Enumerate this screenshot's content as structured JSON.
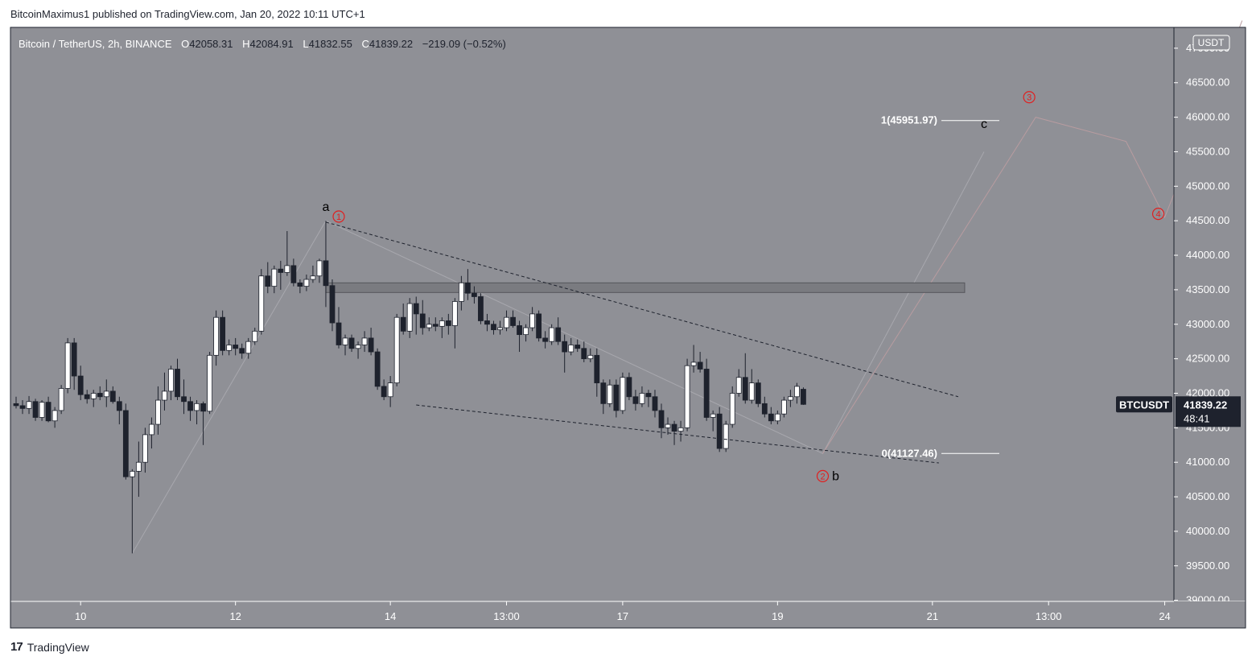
{
  "header": {
    "published_text": "BitcoinMaximus1 published on TradingView.com, Jan 20, 2022 10:11 UTC+1"
  },
  "footer": {
    "logo_glyph": "17",
    "brand": "TradingView"
  },
  "symbol_bar": {
    "name": "Bitcoin / TetherUS, 2h, BINANCE",
    "o_label": "O",
    "o": "42058.31",
    "h_label": "H",
    "h": "42084.91",
    "l_label": "L",
    "l": "41832.55",
    "c_label": "C",
    "c": "41839.22",
    "change": "−219.09 (−0.52%)"
  },
  "currency_badge": "USDT",
  "price_tag": {
    "symbol": "BTCUSDT",
    "price": "41839.22",
    "countdown": "48:41"
  },
  "colors": {
    "background": "#8f9096",
    "up": "#ffffff",
    "down": "#1e222d",
    "wave": "#e02020"
  },
  "chart_data": {
    "type": "candlestick",
    "ylim": [
      39000,
      47000
    ],
    "y_ticks": [
      {
        "label": "46500.00",
        "v": 46500
      },
      {
        "label": "46000.00",
        "v": 46000
      },
      {
        "label": "45500.00",
        "v": 45500
      },
      {
        "label": "45000.00",
        "v": 45000
      },
      {
        "label": "44500.00",
        "v": 44500
      },
      {
        "label": "44000.00",
        "v": 44000
      },
      {
        "label": "43500.00",
        "v": 43500
      },
      {
        "label": "43000.00",
        "v": 43000
      },
      {
        "label": "42500.00",
        "v": 42500
      },
      {
        "label": "42000.00",
        "v": 42000
      },
      {
        "label": "41500.00",
        "v": 41500
      },
      {
        "label": "41000.00",
        "v": 41000
      },
      {
        "label": "40500.00",
        "v": 40500
      },
      {
        "label": "40000.00",
        "v": 40000
      },
      {
        "label": "39500.00",
        "v": 39500
      },
      {
        "label": "39000.00",
        "v": 39000
      }
    ],
    "top_tick_label": "47000.00",
    "x_ticks": [
      {
        "label": "10",
        "i": 10
      },
      {
        "label": "12",
        "i": 34
      },
      {
        "label": "14",
        "i": 58
      },
      {
        "label": "13:00",
        "i": 76
      },
      {
        "label": "17",
        "i": 94
      },
      {
        "label": "19",
        "i": 118
      },
      {
        "label": "21",
        "i": 142
      },
      {
        "label": "13:00",
        "i": 160
      },
      {
        "label": "24",
        "i": 178
      }
    ],
    "candles": [
      [
        41850,
        41950,
        41780,
        41820
      ],
      [
        41820,
        41900,
        41700,
        41780
      ],
      [
        41780,
        41960,
        41700,
        41880
      ],
      [
        41880,
        41920,
        41600,
        41650
      ],
      [
        41650,
        41900,
        41600,
        41870
      ],
      [
        41870,
        41950,
        41580,
        41600
      ],
      [
        41600,
        41800,
        41500,
        41750
      ],
      [
        41750,
        42120,
        41700,
        42070
      ],
      [
        42070,
        42800,
        42000,
        42730
      ],
      [
        42730,
        42800,
        42050,
        42250
      ],
      [
        42250,
        42400,
        41900,
        41980
      ],
      [
        41980,
        42050,
        41850,
        41920
      ],
      [
        41920,
        42050,
        41800,
        42000
      ],
      [
        42000,
        42100,
        41900,
        41950
      ],
      [
        41950,
        42200,
        41800,
        42030
      ],
      [
        42030,
        42100,
        41850,
        41880
      ],
      [
        41880,
        41950,
        41550,
        41750
      ],
      [
        41750,
        41850,
        40750,
        40790
      ],
      [
        40790,
        40900,
        39680,
        40870
      ],
      [
        40870,
        41300,
        40500,
        41000
      ],
      [
        41000,
        41500,
        40850,
        41400
      ],
      [
        41400,
        41650,
        41200,
        41550
      ],
      [
        41550,
        42100,
        41400,
        41900
      ],
      [
        41900,
        42300,
        41750,
        42030
      ],
      [
        42030,
        42400,
        41900,
        42350
      ],
      [
        42350,
        42500,
        41900,
        41950
      ],
      [
        41950,
        42200,
        41700,
        41880
      ],
      [
        41880,
        41950,
        41600,
        41750
      ],
      [
        41750,
        41900,
        41550,
        41850
      ],
      [
        41850,
        41880,
        41250,
        41740
      ],
      [
        41740,
        42600,
        41700,
        42550
      ],
      [
        42550,
        43200,
        42400,
        43100
      ],
      [
        43100,
        43200,
        42550,
        42620
      ],
      [
        42620,
        42780,
        42550,
        42700
      ],
      [
        42700,
        42800,
        42550,
        42650
      ],
      [
        42650,
        42720,
        42500,
        42580
      ],
      [
        42580,
        42800,
        42500,
        42750
      ],
      [
        42750,
        42950,
        42700,
        42900
      ],
      [
        42900,
        43800,
        42850,
        43700
      ],
      [
        43700,
        43900,
        43450,
        43550
      ],
      [
        43550,
        43850,
        43450,
        43800
      ],
      [
        43800,
        43920,
        43500,
        43750
      ],
      [
        43750,
        44350,
        43700,
        43850
      ],
      [
        43850,
        43950,
        43550,
        43600
      ],
      [
        43600,
        43650,
        43450,
        43550
      ],
      [
        43550,
        43720,
        43480,
        43650
      ],
      [
        43650,
        43850,
        43600,
        43700
      ],
      [
        43700,
        43950,
        43600,
        43920
      ],
      [
        43920,
        44500,
        43250,
        43560
      ],
      [
        43560,
        43650,
        42900,
        43020
      ],
      [
        43020,
        43250,
        42650,
        42700
      ],
      [
        42700,
        42850,
        42550,
        42800
      ],
      [
        42800,
        42850,
        42600,
        42650
      ],
      [
        42650,
        42750,
        42500,
        42700
      ],
      [
        42700,
        42900,
        42600,
        42800
      ],
      [
        42800,
        42950,
        42550,
        42600
      ],
      [
        42600,
        42650,
        42050,
        42100
      ],
      [
        42100,
        42200,
        41900,
        41950
      ],
      [
        41950,
        42250,
        41800,
        42150
      ],
      [
        42150,
        43150,
        42100,
        43100
      ],
      [
        43100,
        43300,
        42850,
        42900
      ],
      [
        42900,
        43380,
        42800,
        43300
      ],
      [
        43300,
        43400,
        42850,
        43150
      ],
      [
        43150,
        43350,
        42850,
        42950
      ],
      [
        42950,
        43100,
        42900,
        43000
      ],
      [
        43000,
        43100,
        42900,
        42970
      ],
      [
        42970,
        43100,
        42800,
        43050
      ],
      [
        43050,
        43150,
        42850,
        42980
      ],
      [
        42980,
        43380,
        42650,
        43330
      ],
      [
        43330,
        43700,
        43200,
        43600
      ],
      [
        43600,
        43800,
        43350,
        43450
      ],
      [
        43450,
        43550,
        43300,
        43400
      ],
      [
        43400,
        43450,
        43000,
        43050
      ],
      [
        43050,
        43150,
        42900,
        43000
      ],
      [
        43000,
        43050,
        42850,
        42920
      ],
      [
        42920,
        43050,
        42850,
        42950
      ],
      [
        42950,
        43200,
        42900,
        43100
      ],
      [
        43100,
        43200,
        42950,
        42980
      ],
      [
        42980,
        43050,
        42600,
        42850
      ],
      [
        42850,
        43000,
        42750,
        42950
      ],
      [
        42950,
        43250,
        42900,
        43150
      ],
      [
        43150,
        43200,
        42750,
        42800
      ],
      [
        42800,
        42900,
        42650,
        42750
      ],
      [
        42750,
        43000,
        42700,
        42950
      ],
      [
        42950,
        43100,
        42700,
        42750
      ],
      [
        42750,
        42850,
        42300,
        42600
      ],
      [
        42600,
        42800,
        42550,
        42700
      ],
      [
        42700,
        42780,
        42600,
        42650
      ],
      [
        42650,
        42750,
        42450,
        42500
      ],
      [
        42500,
        42650,
        42450,
        42550
      ],
      [
        42550,
        42650,
        41950,
        42150
      ],
      [
        42150,
        42200,
        41700,
        41850
      ],
      [
        41850,
        42200,
        41800,
        42120
      ],
      [
        42120,
        42200,
        41650,
        41750
      ],
      [
        41750,
        42300,
        41700,
        42230
      ],
      [
        42230,
        42300,
        41900,
        41950
      ],
      [
        41950,
        42050,
        41750,
        41850
      ],
      [
        41850,
        42100,
        41800,
        42000
      ],
      [
        42000,
        42050,
        41800,
        41950
      ],
      [
        41950,
        42050,
        41650,
        41750
      ],
      [
        41750,
        41850,
        41350,
        41500
      ],
      [
        41500,
        41650,
        41400,
        41550
      ],
      [
        41550,
        41600,
        41250,
        41450
      ],
      [
        41450,
        41600,
        41300,
        41500
      ],
      [
        41500,
        42500,
        41450,
        42400
      ],
      [
        42400,
        42700,
        42300,
        42450
      ],
      [
        42450,
        42600,
        42300,
        42350
      ],
      [
        42350,
        42500,
        41600,
        41650
      ],
      [
        41650,
        41750,
        41450,
        41700
      ],
      [
        41700,
        41800,
        41150,
        41200
      ],
      [
        41200,
        41600,
        41150,
        41550
      ],
      [
        41550,
        42100,
        41500,
        42000
      ],
      [
        42000,
        42350,
        41950,
        42230
      ],
      [
        42230,
        42580,
        41850,
        41900
      ],
      [
        41900,
        42350,
        41850,
        42150
      ],
      [
        42150,
        42200,
        41800,
        41850
      ],
      [
        41850,
        41950,
        41650,
        41700
      ],
      [
        41700,
        41800,
        41550,
        41600
      ],
      [
        41600,
        41750,
        41550,
        41700
      ],
      [
        41700,
        41950,
        41650,
        41900
      ],
      [
        41900,
        42050,
        41800,
        41950
      ],
      [
        41950,
        42150,
        41850,
        42100
      ],
      [
        42058,
        42085,
        41832,
        41839
      ]
    ],
    "support_zone": {
      "low": 43460,
      "high": 43600,
      "from_i": 48,
      "to_i": 147
    },
    "resistance_trendline": {
      "i1": 48,
      "v1": 44480,
      "i2": 146,
      "v2": 41950
    },
    "support_trendline": {
      "i1": 62,
      "v1": 41830,
      "i2": 143,
      "v2": 40990
    },
    "fib_levels": [
      {
        "label": "1(45951.97)",
        "value": 45951.97
      },
      {
        "label": "0(41127.46)",
        "value": 41127.46
      }
    ],
    "wave_labels": [
      {
        "text": "a",
        "i": 48,
        "v": 44700,
        "color": "black"
      },
      {
        "text": "b",
        "i": 127,
        "v": 40800,
        "color": "black"
      },
      {
        "text": "c",
        "i": 150,
        "v": 45900,
        "color": "black"
      },
      {
        "text": "1",
        "i": 50,
        "v": 44560,
        "color": "red",
        "circled": true
      },
      {
        "text": "2",
        "i": 125,
        "v": 40800,
        "color": "red",
        "circled": true
      },
      {
        "text": "3",
        "i": 157,
        "v": 46290,
        "color": "red",
        "circled": true
      },
      {
        "text": "4",
        "i": 177,
        "v": 44600,
        "color": "red",
        "circled": true
      }
    ],
    "projection_paths": [
      {
        "points": [
          [
            18,
            39680
          ],
          [
            48,
            44500
          ],
          [
            125,
            41127
          ],
          [
            150,
            45500
          ]
        ],
        "color": "#a8a8ae"
      },
      {
        "points": [
          [
            125,
            41127
          ],
          [
            158,
            46000
          ],
          [
            172,
            45650
          ],
          [
            178,
            44550
          ],
          [
            190,
            47400
          ]
        ],
        "color": "#b89ca0"
      }
    ]
  }
}
